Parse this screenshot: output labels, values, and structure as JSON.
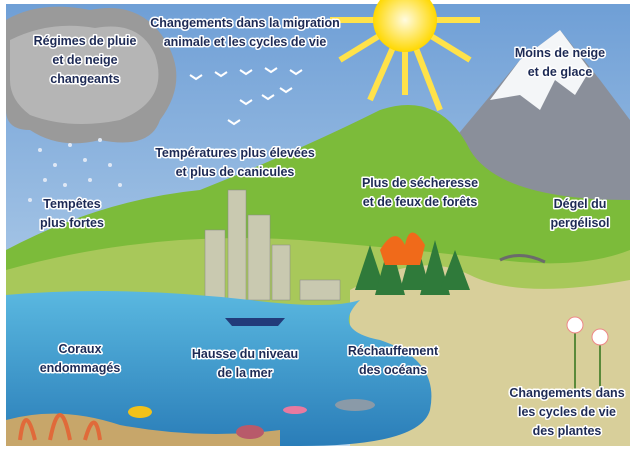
{
  "labels": [
    {
      "lines": [
        "Régimes de pluie",
        "et de neige",
        "changeants"
      ]
    },
    {
      "lines": [
        "Changements dans la migration",
        "animale et les cycles de vie"
      ]
    },
    {
      "lines": [
        "Moins de neige",
        "et de glace"
      ]
    },
    {
      "lines": [
        "Températures plus élevées",
        "et plus de canicules"
      ]
    },
    {
      "lines": [
        "Tempêtes",
        "plus fortes"
      ]
    },
    {
      "lines": [
        "Plus de sécheresse",
        "et de feux de forêts"
      ]
    },
    {
      "lines": [
        "Dégel du",
        "pergélisol"
      ]
    },
    {
      "lines": [
        "Coraux",
        "endommagés"
      ]
    },
    {
      "lines": [
        "Hausse du niveau",
        "de la mer"
      ]
    },
    {
      "lines": [
        "Réchauffement",
        "des océans"
      ]
    },
    {
      "lines": [
        "Changements dans",
        "les cycles de vie",
        "des plantes"
      ]
    }
  ]
}
